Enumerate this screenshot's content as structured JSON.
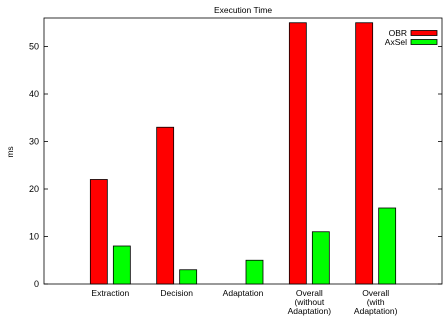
{
  "chart_data": {
    "type": "bar",
    "title": "Execution Time",
    "xlabel": "",
    "ylabel": "ms",
    "ylim": [
      0,
      56
    ],
    "yticks": [
      0,
      10,
      20,
      30,
      40,
      50
    ],
    "categories": [
      [
        "Extraction"
      ],
      [
        "Decision"
      ],
      [
        "Adaptation"
      ],
      [
        "Overall",
        "(without",
        "Adaptation)"
      ],
      [
        "Overall",
        "(with",
        "Adaptation)"
      ]
    ],
    "series": [
      {
        "name": "OBR",
        "color": "#ff0000",
        "values": [
          22,
          33,
          0,
          55,
          55
        ]
      },
      {
        "name": "AxSel",
        "color": "#00ff00",
        "values": [
          8,
          3,
          5,
          11,
          16
        ]
      }
    ],
    "legend_position": "top-right",
    "grid": false
  }
}
